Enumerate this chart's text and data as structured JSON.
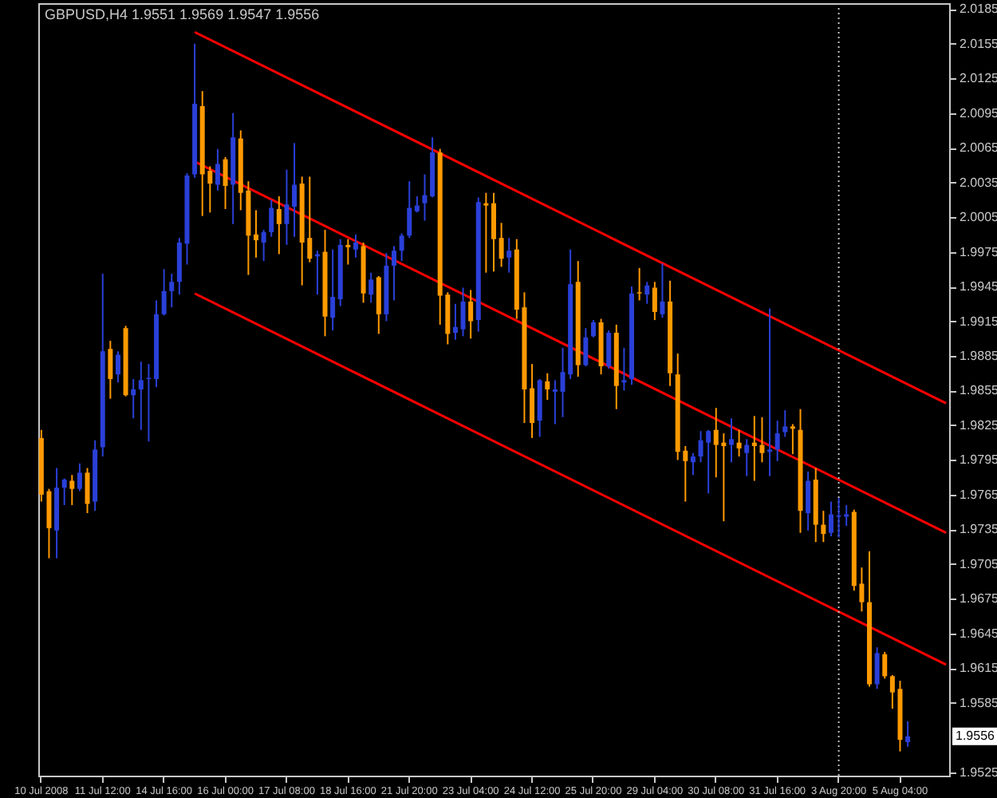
{
  "chart_data": {
    "type": "candlestick",
    "title": "GBPUSD,H4 1.9551 1.9569 1.9547 1.9556",
    "categories": [
      "10 Jul 2008",
      null,
      null,
      null,
      null,
      null,
      null,
      null,
      "11 Jul 12:00",
      null,
      null,
      null,
      null,
      null,
      null,
      null,
      "14 Jul 16:00",
      null,
      null,
      null,
      null,
      null,
      null,
      null,
      "16 Jul 00:00",
      null,
      null,
      null,
      null,
      null,
      null,
      null,
      "17 Jul 08:00",
      null,
      null,
      null,
      null,
      null,
      null,
      null,
      "18 Jul 16:00",
      null,
      null,
      null,
      null,
      null,
      null,
      null,
      "21 Jul 20:00",
      null,
      null,
      null,
      null,
      null,
      null,
      null,
      "23 Jul 04:00",
      null,
      null,
      null,
      null,
      null,
      null,
      null,
      "24 Jul 12:00",
      null,
      null,
      null,
      null,
      null,
      null,
      null,
      "25 Jul 20:00",
      null,
      null,
      null,
      null,
      null,
      null,
      null,
      "29 Jul 04:00",
      null,
      null,
      null,
      null,
      null,
      null,
      null,
      "30 Jul 08:00",
      null,
      null,
      null,
      null,
      null,
      null,
      null,
      "31 Jul 16:00",
      null,
      null,
      null,
      null,
      null,
      null,
      null,
      "3 Aug 20:00",
      null,
      null,
      null,
      null,
      null,
      null,
      null,
      "5 Aug 04:00",
      null,
      null,
      null,
      null,
      null,
      null
    ],
    "ohlc": [
      [
        1.9814,
        1.9821,
        1.9759,
        1.9765
      ],
      [
        1.9768,
        1.977,
        1.971,
        1.9736
      ],
      [
        1.9734,
        1.9788,
        1.971,
        1.9771
      ],
      [
        1.9771,
        1.9779,
        1.9756,
        1.9778
      ],
      [
        1.9777,
        1.9782,
        1.9756,
        1.977
      ],
      [
        1.977,
        1.9792,
        1.9768,
        1.9784
      ],
      [
        1.9784,
        1.9788,
        1.9749,
        1.9757
      ],
      [
        1.9759,
        1.9812,
        1.9751,
        1.9804
      ],
      [
        1.9806,
        1.9956,
        1.9798,
        1.9889
      ],
      [
        1.9891,
        1.9898,
        1.9848,
        1.9865
      ],
      [
        1.9869,
        1.9889,
        1.9862,
        1.9886
      ],
      [
        1.9909,
        1.9911,
        1.985,
        1.9851
      ],
      [
        1.9851,
        1.9865,
        1.9831,
        1.9856
      ],
      [
        1.9856,
        1.988,
        1.9821,
        1.9864
      ],
      [
        1.9865,
        1.9878,
        1.9811,
        1.9866
      ],
      [
        1.9865,
        1.9933,
        1.9858,
        1.9921
      ],
      [
        1.9921,
        1.996,
        1.992,
        1.9941
      ],
      [
        1.9941,
        1.9956,
        1.9927,
        1.9949
      ],
      [
        1.9949,
        1.9987,
        1.9938,
        1.9983
      ],
      [
        1.9982,
        2.0043,
        1.9964,
        2.0041
      ],
      [
        2.0042,
        2.0155,
        2.0039,
        2.0103
      ],
      [
        2.0101,
        2.0114,
        2.0006,
        2.0042
      ],
      [
        2.0045,
        2.0049,
        2.0009,
        2.0034
      ],
      [
        2.0033,
        2.0064,
        2.0028,
        2.0051
      ],
      [
        2.0055,
        2.0057,
        2.0012,
        2.0032
      ],
      [
        2.0033,
        2.0095,
        1.9999,
        2.0074
      ],
      [
        2.0073,
        2.008,
        2.0011,
        2.0026
      ],
      [
        2.0028,
        2.0036,
        1.9955,
        1.9989
      ],
      [
        1.999,
        2.0011,
        1.997,
        1.9985
      ],
      [
        1.9983,
        1.9994,
        1.9967,
        1.9992
      ],
      [
        1.9992,
        2.002,
        1.9988,
        2.0013
      ],
      [
        2.0012,
        2.0023,
        1.9973,
        1.9999
      ],
      [
        1.9999,
        2.0046,
        1.9981,
        2.0016
      ],
      [
        2.0014,
        2.0069,
        1.9988,
        2.0033
      ],
      [
        2.0034,
        2.004,
        1.9946,
        1.9983
      ],
      [
        1.9987,
        2.004,
        1.9966,
        1.9969
      ],
      [
        1.9971,
        1.9976,
        1.9938,
        1.9973
      ],
      [
        1.9975,
        1.9994,
        1.9902,
        1.9919
      ],
      [
        1.9918,
        1.9977,
        1.9907,
        1.9936
      ],
      [
        1.9934,
        1.9986,
        1.9928,
        1.9981
      ],
      [
        1.9981,
        1.9986,
        1.9964,
        1.9979
      ],
      [
        1.9977,
        1.999,
        1.997,
        1.9983
      ],
      [
        1.998,
        1.9983,
        1.9931,
        1.9939
      ],
      [
        1.9938,
        1.9957,
        1.9931,
        1.9951
      ],
      [
        1.9953,
        1.9954,
        1.9904,
        1.9921
      ],
      [
        1.9921,
        1.9974,
        1.9915,
        1.9963
      ],
      [
        1.9963,
        1.998,
        1.9933,
        1.9976
      ],
      [
        1.9976,
        1.9991,
        1.9967,
        1.9989
      ],
      [
        1.9989,
        2.0036,
        1.9987,
        2.0013
      ],
      [
        2.001,
        2.0023,
        2.0009,
        2.0015
      ],
      [
        2.0017,
        2.0042,
        2.0002,
        2.0024
      ],
      [
        2.0023,
        2.0074,
        2.0022,
        2.0061
      ],
      [
        2.0061,
        2.0064,
        1.9912,
        1.9937
      ],
      [
        1.9938,
        1.994,
        1.9895,
        1.9904
      ],
      [
        1.9905,
        1.993,
        1.9899,
        1.991
      ],
      [
        1.9908,
        1.9944,
        1.9902,
        1.9932
      ],
      [
        1.9932,
        1.9942,
        1.99,
        1.9915
      ],
      [
        1.9916,
        2.0022,
        1.9906,
        2.0018
      ],
      [
        2.0017,
        2.0026,
        1.9957,
        2.0015
      ],
      [
        2.0017,
        2.0026,
        1.9958,
        1.9986
      ],
      [
        1.9987,
        2.0,
        1.9962,
        1.9969
      ],
      [
        1.997,
        1.9987,
        1.9957,
        1.9976
      ],
      [
        1.9977,
        1.9986,
        1.9917,
        1.9925
      ],
      [
        1.9927,
        1.994,
        1.9827,
        1.9856
      ],
      [
        1.9857,
        1.9878,
        1.9814,
        1.9827
      ],
      [
        1.9829,
        1.9865,
        1.9815,
        1.9864
      ],
      [
        1.9863,
        1.987,
        1.9847,
        1.9856
      ],
      [
        1.9854,
        1.9864,
        1.9826,
        1.9856
      ],
      [
        1.9854,
        1.9892,
        1.9832,
        1.9871
      ],
      [
        1.9869,
        1.9977,
        1.9865,
        1.9947
      ],
      [
        1.9949,
        1.9967,
        1.9867,
        1.9877
      ],
      [
        1.9877,
        1.9909,
        1.9876,
        1.9901
      ],
      [
        1.9902,
        1.9916,
        1.9901,
        1.9914
      ],
      [
        1.9914,
        1.9917,
        1.9869,
        1.9876
      ],
      [
        1.9876,
        1.9907,
        1.9874,
        1.9905
      ],
      [
        1.9905,
        1.9912,
        1.9839,
        1.9859
      ],
      [
        1.9862,
        1.9892,
        1.9855,
        1.9864
      ],
      [
        1.9865,
        1.9945,
        1.986,
        1.9939
      ],
      [
        1.994,
        1.9961,
        1.9933,
        1.9939
      ],
      [
        1.9938,
        1.9949,
        1.993,
        1.9946
      ],
      [
        1.9944,
        1.9949,
        1.9916,
        1.9923
      ],
      [
        1.9921,
        1.9965,
        1.9918,
        1.9932
      ],
      [
        1.9932,
        1.995,
        1.9859,
        1.987
      ],
      [
        1.9869,
        1.9887,
        1.9795,
        1.9802
      ],
      [
        1.9803,
        1.9807,
        1.9759,
        1.9794
      ],
      [
        1.9793,
        1.9801,
        1.9782,
        1.9798
      ],
      [
        1.9798,
        1.982,
        1.9793,
        1.9812
      ],
      [
        1.981,
        1.9821,
        1.9766,
        1.982
      ],
      [
        1.9821,
        1.984,
        1.978,
        1.9808
      ],
      [
        1.981,
        1.9818,
        1.9742,
        1.9807
      ],
      [
        1.9808,
        1.9831,
        1.9793,
        1.9813
      ],
      [
        1.981,
        1.9821,
        1.9798,
        1.9805
      ],
      [
        1.9801,
        1.9813,
        1.9781,
        1.9808
      ],
      [
        1.981,
        1.9833,
        1.9777,
        1.9807
      ],
      [
        1.9808,
        1.9832,
        1.9793,
        1.9801
      ],
      [
        1.9802,
        1.9926,
        1.9781,
        1.9804
      ],
      [
        1.9804,
        1.9829,
        1.9794,
        1.9818
      ],
      [
        1.9819,
        1.9838,
        1.9815,
        1.9824
      ],
      [
        1.9824,
        1.9826,
        1.98,
        1.9822
      ],
      [
        1.9821,
        1.9839,
        1.9732,
        1.9751
      ],
      [
        1.9749,
        1.9785,
        1.9734,
        1.9777
      ],
      [
        1.9778,
        1.9788,
        1.9724,
        1.9739
      ],
      [
        1.9739,
        1.9751,
        1.9724,
        1.9731
      ],
      [
        1.9732,
        1.9759,
        1.9729,
        1.9748
      ],
      [
        1.9746,
        1.9762,
        1.9728,
        1.9747
      ],
      [
        1.9746,
        1.9756,
        1.9738,
        1.9748
      ],
      [
        1.975,
        1.9752,
        1.9682,
        1.9686
      ],
      [
        1.9688,
        1.9702,
        1.9664,
        1.9672
      ],
      [
        1.9672,
        1.9716,
        1.9599,
        1.9601
      ],
      [
        1.9601,
        1.9633,
        1.9597,
        1.9628
      ],
      [
        1.9627,
        1.9629,
        1.9606,
        1.9608
      ],
      [
        1.9608,
        1.9609,
        1.958,
        1.9594
      ],
      [
        1.9597,
        1.9604,
        1.9543,
        1.9553
      ],
      [
        1.9551,
        1.9569,
        1.9547,
        1.9556
      ],
      null,
      null,
      null,
      null,
      null
    ],
    "colors": [
      "#ff9a00",
      "#ff9a00",
      "#2a40d8",
      "#2a40d8",
      "#ff9a00",
      "#2a40d8",
      "#ff9a00",
      "#2a40d8",
      "#2a40d8",
      "#ff9a00",
      "#2a40d8",
      "#ff9a00",
      "#2a40d8",
      "#2a40d8",
      "#2a40d8",
      "#2a40d8",
      "#2a40d8",
      "#2a40d8",
      "#2a40d8",
      "#2a40d8",
      "#2a40d8",
      "#ff9a00",
      "#ff9a00",
      "#2a40d8",
      "#ff9a00",
      "#2a40d8",
      "#ff9a00",
      "#ff9a00",
      "#ff9a00",
      "#2a40d8",
      "#2a40d8",
      "#ff9a00",
      "#2a40d8",
      "#2a40d8",
      "#ff9a00",
      "#ff9a00",
      "#2a40d8",
      "#ff9a00",
      "#2a40d8",
      "#2a40d8",
      "#ff9a00",
      "#2a40d8",
      "#ff9a00",
      "#2a40d8",
      "#ff9a00",
      "#2a40d8",
      "#2a40d8",
      "#2a40d8",
      "#2a40d8",
      "#2a40d8",
      "#2a40d8",
      "#2a40d8",
      "#ff9a00",
      "#ff9a00",
      "#2a40d8",
      "#2a40d8",
      "#ff9a00",
      "#2a40d8",
      "#ff9a00",
      "#ff9a00",
      "#ff9a00",
      "#2a40d8",
      "#ff9a00",
      "#ff9a00",
      "#ff9a00",
      "#2a40d8",
      "#ff9a00",
      "#2a40d8",
      "#2a40d8",
      "#2a40d8",
      "#ff9a00",
      "#2a40d8",
      "#2a40d8",
      "#ff9a00",
      "#2a40d8",
      "#ff9a00",
      "#2a40d8",
      "#2a40d8",
      "#ff9a00",
      "#2a40d8",
      "#ff9a00",
      "#2a40d8",
      "#ff9a00",
      "#ff9a00",
      "#ff9a00",
      "#2a40d8",
      "#2a40d8",
      "#2a40d8",
      "#ff9a00",
      "#ff9a00",
      "#2a40d8",
      "#ff9a00",
      "#2a40d8",
      "#ff9a00",
      "#ff9a00",
      "#2a40d8",
      "#2a40d8",
      "#2a40d8",
      "#ff9a00",
      "#ff9a00",
      "#2a40d8",
      "#ff9a00",
      "#ff9a00",
      "#2a40d8",
      "#2a40d8",
      "#2a40d8",
      "#ff9a00",
      "#ff9a00",
      "#ff9a00",
      "#2a40d8",
      "#ff9a00",
      "#ff9a00",
      "#ff9a00",
      "#2a40d8",
      null,
      null,
      null,
      null,
      null
    ],
    "series": [
      {
        "type": "line",
        "color": "#ff0000",
        "values": [
          null,
          null,
          null,
          null,
          null,
          null,
          null,
          null,
          null,
          null,
          null,
          null,
          null,
          null,
          null,
          null,
          null,
          null,
          null,
          null,
          2.0165,
          null,
          null,
          null,
          null,
          null,
          null,
          null,
          null,
          null,
          null,
          null,
          null,
          null,
          null,
          null,
          null,
          null,
          null,
          null,
          null,
          null,
          null,
          null,
          null,
          null,
          null,
          null,
          null,
          null,
          null,
          null,
          null,
          null,
          null,
          null,
          null,
          null,
          null,
          null,
          null,
          null,
          null,
          null,
          null,
          null,
          null,
          null,
          null,
          null,
          null,
          null,
          null,
          null,
          null,
          null,
          null,
          null,
          null,
          null,
          null,
          null,
          null,
          null,
          null,
          null,
          null,
          null,
          null,
          null,
          null,
          null,
          null,
          null,
          null,
          null,
          null,
          null,
          null,
          null,
          null,
          null,
          null,
          null,
          null,
          null,
          null,
          null,
          null,
          null,
          null,
          null,
          null,
          null,
          null,
          null,
          null,
          null,
          1.9844
        ]
      },
      {
        "type": "line",
        "color": "#ff0000",
        "values": [
          null,
          null,
          null,
          null,
          null,
          null,
          null,
          null,
          null,
          null,
          null,
          null,
          null,
          null,
          null,
          null,
          null,
          null,
          null,
          null,
          2.0053,
          null,
          null,
          null,
          null,
          null,
          null,
          null,
          null,
          null,
          null,
          null,
          null,
          null,
          null,
          null,
          null,
          null,
          null,
          null,
          null,
          null,
          null,
          null,
          null,
          null,
          null,
          null,
          null,
          null,
          null,
          null,
          null,
          null,
          null,
          null,
          null,
          null,
          null,
          null,
          null,
          null,
          null,
          null,
          null,
          null,
          null,
          null,
          null,
          null,
          null,
          null,
          null,
          null,
          null,
          null,
          null,
          null,
          null,
          null,
          null,
          null,
          null,
          null,
          null,
          null,
          null,
          null,
          null,
          null,
          null,
          null,
          null,
          null,
          null,
          null,
          null,
          null,
          null,
          null,
          null,
          null,
          null,
          null,
          null,
          null,
          null,
          null,
          null,
          null,
          null,
          null,
          null,
          null,
          null,
          null,
          null,
          null,
          1.9732
        ]
      },
      {
        "type": "line",
        "color": "#ff0000",
        "values": [
          null,
          null,
          null,
          null,
          null,
          null,
          null,
          null,
          null,
          null,
          null,
          null,
          null,
          null,
          null,
          null,
          null,
          null,
          null,
          null,
          1.9939,
          null,
          null,
          null,
          null,
          null,
          null,
          null,
          null,
          null,
          null,
          null,
          null,
          null,
          null,
          null,
          null,
          null,
          null,
          null,
          null,
          null,
          null,
          null,
          null,
          null,
          null,
          null,
          null,
          null,
          null,
          null,
          null,
          null,
          null,
          null,
          null,
          null,
          null,
          null,
          null,
          null,
          null,
          null,
          null,
          null,
          null,
          null,
          null,
          null,
          null,
          null,
          null,
          null,
          null,
          null,
          null,
          null,
          null,
          null,
          null,
          null,
          null,
          null,
          null,
          null,
          null,
          null,
          null,
          null,
          null,
          null,
          null,
          null,
          null,
          null,
          null,
          null,
          null,
          null,
          null,
          null,
          null,
          null,
          null,
          null,
          null,
          null,
          null,
          null,
          null,
          null,
          null,
          null,
          null,
          null,
          null,
          null,
          1.9618
        ]
      }
    ],
    "ylim": [
      1.9522,
      2.019
    ],
    "yticks": [
      2.0185,
      2.0155,
      2.0125,
      2.0095,
      2.0065,
      2.0035,
      2.0005,
      1.9975,
      1.9945,
      1.9915,
      1.9885,
      1.9855,
      1.9825,
      1.9795,
      1.9765,
      1.9735,
      1.9705,
      1.9675,
      1.9645,
      1.9615,
      1.9585,
      1.9525
    ],
    "ref_lines": [
      {
        "axis": "x",
        "value": "3 Aug 20:00",
        "color": "#c0c0c0",
        "line_style": "dotted"
      }
    ],
    "annotations": [
      {
        "text": "1.9556",
        "y": 1.9556
      }
    ],
    "marker": "none",
    "grid": false
  }
}
